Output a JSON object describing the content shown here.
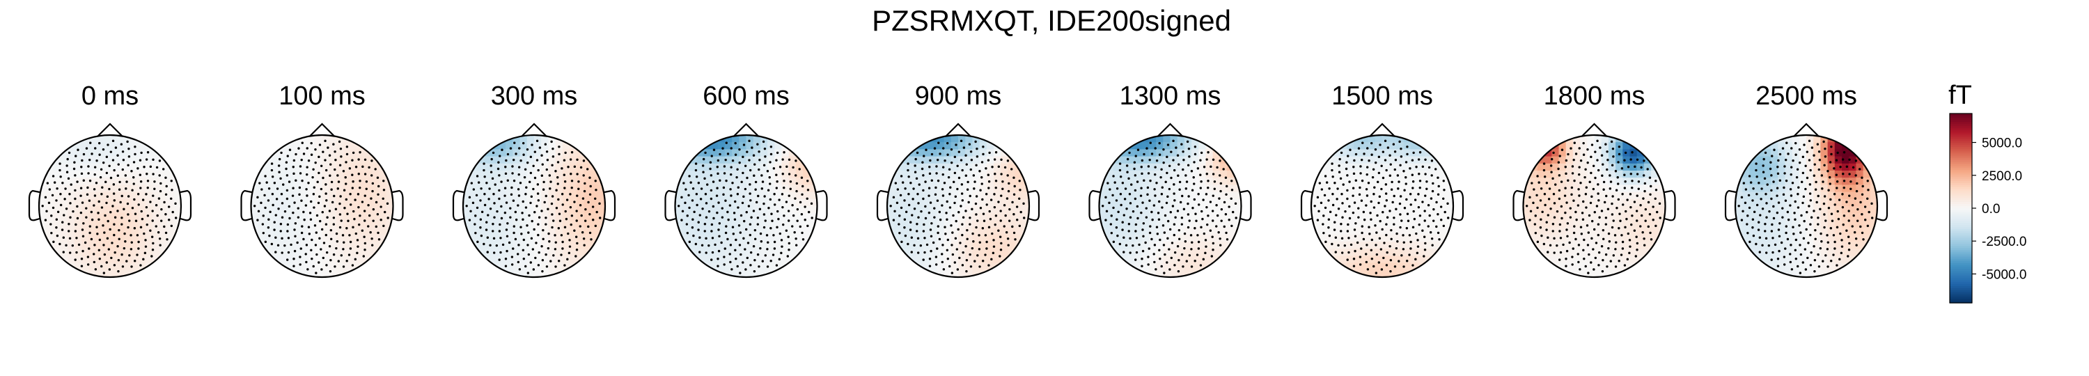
{
  "chart_data": {
    "type": "heatmap",
    "title": "PZSRMXQT, IDE200signed",
    "panels": [
      {
        "label": "0 ms",
        "blobs": [
          {
            "u": -0.2,
            "v": 0.8,
            "sx": 0.5,
            "sy": 0.25,
            "a": -700
          },
          {
            "u": 0.05,
            "v": -0.35,
            "sx": 0.45,
            "sy": 0.5,
            "a": 1300
          }
        ]
      },
      {
        "label": "100 ms",
        "blobs": [
          {
            "u": 0.6,
            "v": 0.2,
            "sx": 0.45,
            "sy": 0.7,
            "a": 1100
          },
          {
            "u": -0.55,
            "v": -0.1,
            "sx": 0.4,
            "sy": 0.7,
            "a": -500
          }
        ]
      },
      {
        "label": "300 ms",
        "blobs": [
          {
            "u": -0.55,
            "v": 0.95,
            "sx": 0.4,
            "sy": 0.25,
            "a": -3200
          },
          {
            "u": 0.85,
            "v": 0.1,
            "sx": 0.45,
            "sy": 0.7,
            "a": 1800
          },
          {
            "u": -0.7,
            "v": -0.2,
            "sx": 0.5,
            "sy": 0.7,
            "a": -900
          }
        ]
      },
      {
        "label": "600 ms",
        "blobs": [
          {
            "u": -0.5,
            "v": 0.95,
            "sx": 0.55,
            "sy": 0.22,
            "a": -4200
          },
          {
            "u": 0.9,
            "v": 0.6,
            "sx": 0.3,
            "sy": 0.3,
            "a": 1800
          },
          {
            "u": -0.6,
            "v": 0.0,
            "sx": 0.6,
            "sy": 0.8,
            "a": -1200
          }
        ]
      },
      {
        "label": "900 ms",
        "blobs": [
          {
            "u": -0.4,
            "v": 0.95,
            "sx": 0.55,
            "sy": 0.22,
            "a": -4200
          },
          {
            "u": 0.9,
            "v": 0.5,
            "sx": 0.3,
            "sy": 0.3,
            "a": 1500
          },
          {
            "u": 0.5,
            "v": -0.6,
            "sx": 0.5,
            "sy": 0.4,
            "a": 1300
          },
          {
            "u": -0.7,
            "v": -0.2,
            "sx": 0.5,
            "sy": 0.7,
            "a": -1100
          }
        ]
      },
      {
        "label": "1300 ms",
        "blobs": [
          {
            "u": -0.4,
            "v": 0.95,
            "sx": 0.5,
            "sy": 0.22,
            "a": -4300
          },
          {
            "u": 0.9,
            "v": 0.7,
            "sx": 0.25,
            "sy": 0.25,
            "a": 2600
          },
          {
            "u": -0.75,
            "v": 0.0,
            "sx": 0.5,
            "sy": 0.7,
            "a": -1300
          },
          {
            "u": 0.3,
            "v": -0.8,
            "sx": 0.5,
            "sy": 0.3,
            "a": 900
          }
        ]
      },
      {
        "label": "1500 ms",
        "blobs": [
          {
            "u": -0.3,
            "v": 0.95,
            "sx": 0.35,
            "sy": 0.2,
            "a": -2400
          },
          {
            "u": 0.55,
            "v": 0.95,
            "sx": 0.3,
            "sy": 0.2,
            "a": -2400
          },
          {
            "u": 0.0,
            "v": -0.9,
            "sx": 0.6,
            "sy": 0.25,
            "a": 1600
          }
        ]
      },
      {
        "label": "1800 ms",
        "blobs": [
          {
            "u": -0.7,
            "v": 0.85,
            "sx": 0.2,
            "sy": 0.2,
            "a": 5200
          },
          {
            "u": 0.55,
            "v": 0.75,
            "sx": 0.22,
            "sy": 0.22,
            "a": -6200
          },
          {
            "u": -0.75,
            "v": 0.2,
            "sx": 0.4,
            "sy": 0.5,
            "a": 1300
          },
          {
            "u": 0.75,
            "v": -0.3,
            "sx": 0.4,
            "sy": 0.4,
            "a": 900
          }
        ]
      },
      {
        "label": "2500 ms",
        "blobs": [
          {
            "u": 0.55,
            "v": 0.8,
            "sx": 0.22,
            "sy": 0.3,
            "a": 7200
          },
          {
            "u": -0.65,
            "v": 0.6,
            "sx": 0.3,
            "sy": 0.3,
            "a": -2600
          },
          {
            "u": 0.7,
            "v": 0.0,
            "sx": 0.4,
            "sy": 0.6,
            "a": 1800
          },
          {
            "u": -0.7,
            "v": -0.3,
            "sx": 0.5,
            "sy": 0.6,
            "a": -1100
          }
        ]
      }
    ],
    "colorbar": {
      "label": "fT",
      "range": [
        -7200,
        7200
      ],
      "ticks": [
        5000,
        2500,
        0,
        -2500,
        -5000
      ],
      "tick_labels": [
        "5000.0",
        "2500.0",
        "0.0",
        "-2500.0",
        "-5000.0"
      ],
      "colormap": "RdBu_r"
    },
    "colors": {
      "stops": [
        "#053061",
        "#2166ac",
        "#4393c3",
        "#92c5de",
        "#d1e5f0",
        "#f7f7f7",
        "#fddbc7",
        "#f4a582",
        "#d6604d",
        "#b2182b",
        "#67001f"
      ]
    }
  }
}
